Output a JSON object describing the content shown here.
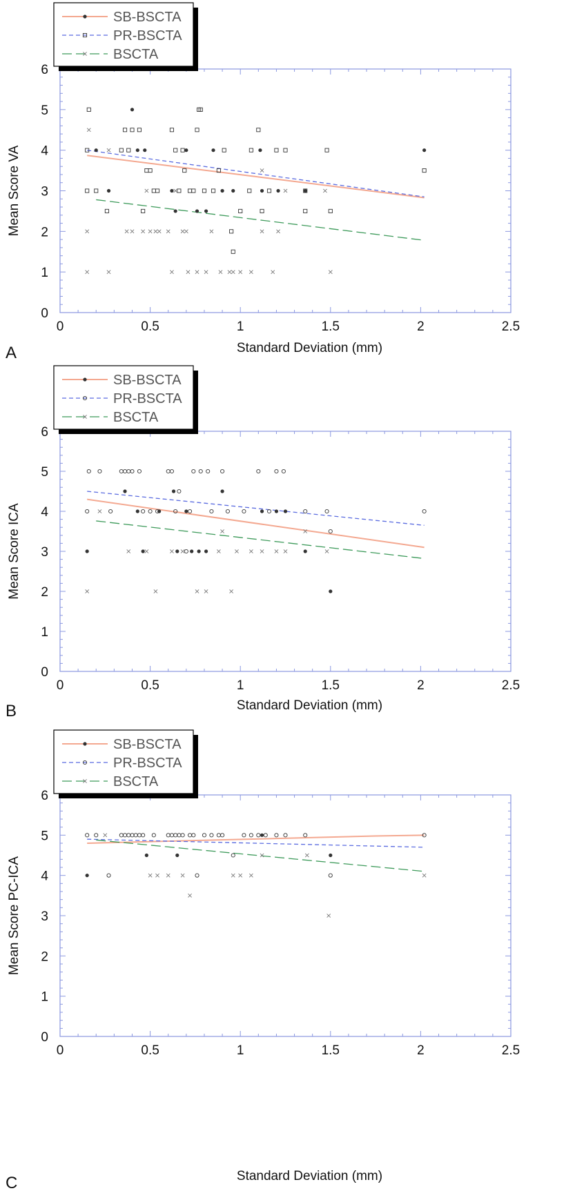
{
  "colors": {
    "frame": "#8a97e0",
    "sb": "#f4a890",
    "pr": "#5a6be0",
    "bs": "#3d9a5a",
    "marker": "#333333",
    "legend_shadow": "#000000"
  },
  "chart_data": [
    {
      "panel": "A",
      "type": "scatter",
      "xlabel": "Standard Deviation (mm)",
      "ylabel": "Mean Score VA",
      "xlim": [
        0,
        2.5
      ],
      "ylim": [
        0,
        6
      ],
      "xticks": [
        "0",
        "0.5",
        "1",
        "1.5",
        "2",
        "2.5"
      ],
      "yticks": [
        "0",
        "1",
        "2",
        "3",
        "4",
        "5",
        "6"
      ],
      "legend": [
        "SB-BSCTA",
        "PR-BSCTA",
        "BSCTA"
      ],
      "series": [
        {
          "name": "SB-BSCTA",
          "marker": "dot",
          "points": [
            [
              0.2,
              4
            ],
            [
              0.27,
              3
            ],
            [
              0.4,
              5
            ],
            [
              0.43,
              4
            ],
            [
              0.47,
              4
            ],
            [
              0.62,
              3
            ],
            [
              0.64,
              2.5
            ],
            [
              0.7,
              4
            ],
            [
              0.76,
              2.5
            ],
            [
              0.81,
              2.5
            ],
            [
              0.85,
              4
            ],
            [
              0.9,
              3
            ],
            [
              0.96,
              3
            ],
            [
              1.11,
              4
            ],
            [
              1.12,
              3
            ],
            [
              1.21,
              3
            ],
            [
              1.36,
              3
            ],
            [
              2.02,
              4
            ]
          ],
          "trend": [
            [
              0.15,
              3.87
            ],
            [
              2.02,
              2.83
            ]
          ]
        },
        {
          "name": "PR-BSCTA",
          "marker": "square",
          "points": [
            [
              0.15,
              4
            ],
            [
              0.16,
              5
            ],
            [
              0.15,
              3
            ],
            [
              0.2,
              3
            ],
            [
              0.26,
              2.5
            ],
            [
              0.34,
              4
            ],
            [
              0.36,
              4.5
            ],
            [
              0.38,
              4
            ],
            [
              0.4,
              4.5
            ],
            [
              0.44,
              4.5
            ],
            [
              0.46,
              2.5
            ],
            [
              0.48,
              3.5
            ],
            [
              0.5,
              3.5
            ],
            [
              0.52,
              3
            ],
            [
              0.54,
              3
            ],
            [
              0.62,
              4.5
            ],
            [
              0.64,
              4
            ],
            [
              0.66,
              3
            ],
            [
              0.68,
              4
            ],
            [
              0.69,
              3.5
            ],
            [
              0.72,
              3
            ],
            [
              0.74,
              3
            ],
            [
              0.76,
              4.5
            ],
            [
              0.77,
              5
            ],
            [
              0.78,
              5
            ],
            [
              0.8,
              3
            ],
            [
              0.85,
              3
            ],
            [
              0.88,
              3.5
            ],
            [
              0.91,
              4
            ],
            [
              0.96,
              1.5
            ],
            [
              0.95,
              2
            ],
            [
              1,
              2.5
            ],
            [
              1.05,
              3
            ],
            [
              1.06,
              4
            ],
            [
              1.1,
              4.5
            ],
            [
              1.12,
              2.5
            ],
            [
              1.16,
              3
            ],
            [
              1.2,
              4
            ],
            [
              1.25,
              4
            ],
            [
              1.36,
              2.5
            ],
            [
              1.36,
              3
            ],
            [
              1.48,
              4
            ],
            [
              1.5,
              2.5
            ],
            [
              2.02,
              3.5
            ]
          ],
          "trend": [
            [
              0.15,
              4.0
            ],
            [
              2.02,
              2.85
            ]
          ]
        },
        {
          "name": "BSCTA",
          "marker": "x",
          "points": [
            [
              0.15,
              2
            ],
            [
              0.15,
              1
            ],
            [
              0.16,
              4.5
            ],
            [
              0.27,
              1
            ],
            [
              0.27,
              4
            ],
            [
              0.37,
              2
            ],
            [
              0.4,
              2
            ],
            [
              0.46,
              2
            ],
            [
              0.48,
              3
            ],
            [
              0.5,
              2
            ],
            [
              0.53,
              2
            ],
            [
              0.55,
              2
            ],
            [
              0.6,
              2
            ],
            [
              0.62,
              1
            ],
            [
              0.64,
              3
            ],
            [
              0.68,
              2
            ],
            [
              0.7,
              2
            ],
            [
              0.71,
              1
            ],
            [
              0.76,
              1
            ],
            [
              0.81,
              1
            ],
            [
              0.84,
              2
            ],
            [
              0.89,
              1
            ],
            [
              0.94,
              1
            ],
            [
              0.96,
              1
            ],
            [
              1,
              1
            ],
            [
              1.06,
              1
            ],
            [
              1.12,
              3.5
            ],
            [
              1.12,
              2
            ],
            [
              1.18,
              1
            ],
            [
              1.21,
              2
            ],
            [
              1.25,
              3
            ],
            [
              1.47,
              3
            ],
            [
              1.5,
              1
            ]
          ],
          "trend": [
            [
              0.2,
              2.78
            ],
            [
              2.02,
              1.78
            ]
          ]
        }
      ]
    },
    {
      "panel": "B",
      "type": "scatter",
      "xlabel": "Standard Deviation (mm)",
      "ylabel": "Mean Score ICA",
      "xlim": [
        0,
        2.5
      ],
      "ylim": [
        0,
        6
      ],
      "xticks": [
        "0",
        "0.5",
        "1",
        "1.5",
        "2",
        "2.5"
      ],
      "yticks": [
        "0",
        "1",
        "2",
        "3",
        "4",
        "5",
        "6"
      ],
      "legend": [
        "SB-BSCTA",
        "PR-BSCTA",
        "BSCTA"
      ],
      "series": [
        {
          "name": "SB-BSCTA",
          "marker": "dot",
          "points": [
            [
              0.15,
              3
            ],
            [
              0.36,
              4.5
            ],
            [
              0.43,
              4
            ],
            [
              0.46,
              3
            ],
            [
              0.55,
              4
            ],
            [
              0.63,
              4.5
            ],
            [
              0.65,
              3
            ],
            [
              0.7,
              4
            ],
            [
              0.73,
              3
            ],
            [
              0.77,
              3
            ],
            [
              0.81,
              3
            ],
            [
              0.9,
              4.5
            ],
            [
              1.12,
              4
            ],
            [
              1.2,
              4
            ],
            [
              1.25,
              4
            ],
            [
              1.36,
              3
            ],
            [
              1.5,
              2
            ]
          ],
          "trend": [
            [
              0.15,
              4.3
            ],
            [
              2.02,
              3.1
            ]
          ]
        },
        {
          "name": "PR-BSCTA",
          "marker": "circle",
          "points": [
            [
              0.15,
              4
            ],
            [
              0.16,
              5
            ],
            [
              0.22,
              5
            ],
            [
              0.28,
              4
            ],
            [
              0.34,
              5
            ],
            [
              0.36,
              5
            ],
            [
              0.38,
              5
            ],
            [
              0.4,
              5
            ],
            [
              0.44,
              5
            ],
            [
              0.46,
              4
            ],
            [
              0.5,
              4
            ],
            [
              0.54,
              4
            ],
            [
              0.6,
              5
            ],
            [
              0.62,
              5
            ],
            [
              0.64,
              4
            ],
            [
              0.66,
              4.5
            ],
            [
              0.7,
              3
            ],
            [
              0.72,
              4
            ],
            [
              0.74,
              5
            ],
            [
              0.78,
              5
            ],
            [
              0.82,
              5
            ],
            [
              0.84,
              4
            ],
            [
              0.9,
              5
            ],
            [
              0.93,
              4
            ],
            [
              1.02,
              4
            ],
            [
              1.1,
              5
            ],
            [
              1.16,
              4
            ],
            [
              1.2,
              5
            ],
            [
              1.24,
              5
            ],
            [
              1.36,
              4
            ],
            [
              1.48,
              4
            ],
            [
              1.5,
              3.5
            ],
            [
              2.02,
              4
            ]
          ],
          "trend": [
            [
              0.15,
              4.5
            ],
            [
              2.02,
              3.65
            ]
          ]
        },
        {
          "name": "BSCTA",
          "marker": "x",
          "points": [
            [
              0.15,
              2
            ],
            [
              0.22,
              4
            ],
            [
              0.38,
              3
            ],
            [
              0.48,
              3
            ],
            [
              0.53,
              2
            ],
            [
              0.62,
              3
            ],
            [
              0.68,
              3
            ],
            [
              0.76,
              2
            ],
            [
              0.81,
              2
            ],
            [
              0.88,
              3
            ],
            [
              0.9,
              3.5
            ],
            [
              0.95,
              2
            ],
            [
              0.98,
              3
            ],
            [
              1.06,
              3
            ],
            [
              1.12,
              3
            ],
            [
              1.2,
              3
            ],
            [
              1.25,
              3
            ],
            [
              1.36,
              3.5
            ],
            [
              1.48,
              3
            ]
          ],
          "trend": [
            [
              0.2,
              3.76
            ],
            [
              2.02,
              2.82
            ]
          ]
        }
      ]
    },
    {
      "panel": "C",
      "type": "scatter",
      "xlabel": "Standard Deviation (mm)",
      "ylabel": "Mean Score PC-ICA",
      "xlim": [
        0,
        2.5
      ],
      "ylim": [
        0,
        6
      ],
      "xticks": [
        "0",
        "0.5",
        "1",
        "1.5",
        "2",
        "2.5"
      ],
      "yticks": [
        "0",
        "1",
        "2",
        "3",
        "4",
        "5",
        "6"
      ],
      "legend": [
        "SB-BSCTA",
        "PR-BSCTA",
        "BSCTA"
      ],
      "series": [
        {
          "name": "SB-BSCTA",
          "marker": "dot",
          "points": [
            [
              0.15,
              4
            ],
            [
              0.48,
              4.5
            ],
            [
              0.65,
              4.5
            ],
            [
              1.12,
              5
            ],
            [
              1.5,
              4.5
            ]
          ],
          "trend": [
            [
              0.15,
              4.8
            ],
            [
              1.75,
              4.98
            ],
            [
              2.02,
              5.0
            ]
          ]
        },
        {
          "name": "PR-BSCTA",
          "marker": "circle",
          "points": [
            [
              0.15,
              5
            ],
            [
              0.2,
              5
            ],
            [
              0.27,
              4
            ],
            [
              0.34,
              5
            ],
            [
              0.36,
              5
            ],
            [
              0.38,
              5
            ],
            [
              0.4,
              5
            ],
            [
              0.42,
              5
            ],
            [
              0.44,
              5
            ],
            [
              0.46,
              5
            ],
            [
              0.52,
              5
            ],
            [
              0.6,
              5
            ],
            [
              0.62,
              5
            ],
            [
              0.64,
              5
            ],
            [
              0.66,
              5
            ],
            [
              0.68,
              5
            ],
            [
              0.72,
              5
            ],
            [
              0.74,
              5
            ],
            [
              0.76,
              4
            ],
            [
              0.8,
              5
            ],
            [
              0.84,
              5
            ],
            [
              0.88,
              5
            ],
            [
              0.9,
              5
            ],
            [
              0.96,
              4.5
            ],
            [
              1.02,
              5
            ],
            [
              1.06,
              5
            ],
            [
              1.1,
              5
            ],
            [
              1.14,
              5
            ],
            [
              1.2,
              5
            ],
            [
              1.25,
              5
            ],
            [
              1.36,
              5
            ],
            [
              1.5,
              4
            ],
            [
              2.02,
              5
            ]
          ],
          "trend": [
            [
              0.15,
              4.9
            ],
            [
              2.02,
              4.7
            ]
          ]
        },
        {
          "name": "BSCTA",
          "marker": "x",
          "points": [
            [
              0.25,
              5
            ],
            [
              0.5,
              4
            ],
            [
              0.54,
              4
            ],
            [
              0.6,
              4
            ],
            [
              0.68,
              4
            ],
            [
              0.72,
              3.5
            ],
            [
              0.96,
              4
            ],
            [
              1,
              4
            ],
            [
              1.06,
              4
            ],
            [
              1.12,
              4.5
            ],
            [
              1.37,
              4.5
            ],
            [
              1.49,
              3
            ],
            [
              2.02,
              4
            ]
          ],
          "trend": [
            [
              0.2,
              4.88
            ],
            [
              2.02,
              4.1
            ]
          ]
        }
      ]
    }
  ]
}
